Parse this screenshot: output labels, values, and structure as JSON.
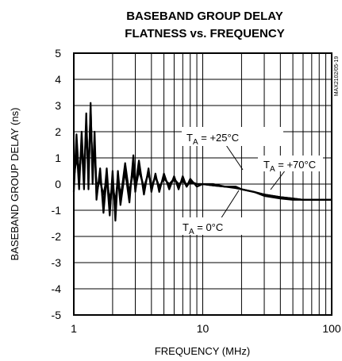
{
  "chart_data": {
    "type": "line",
    "title_line1": "BASEBAND GROUP DELAY",
    "title_line2": "FLATNESS vs. FREQUENCY",
    "xlabel": "FREQUENCY (MHz)",
    "ylabel": "BASEBAND GROUP DELAY (ns)",
    "x_scale": "log",
    "xlim": [
      1,
      100
    ],
    "ylim": [
      -5,
      5
    ],
    "x_ticks": [
      "1",
      "10",
      "100"
    ],
    "y_ticks": [
      "5",
      "4",
      "3",
      "2",
      "1",
      "0",
      "-1",
      "-2",
      "-3",
      "-4",
      "-5"
    ],
    "grid": true,
    "code": "MAX2102/05-19",
    "annotations": [
      {
        "subscript": "A",
        "text": " = +25°C"
      },
      {
        "subscript": "A",
        "text": " = +70°C"
      },
      {
        "subscript": "A",
        "text": " = 0°C"
      }
    ],
    "series": [
      {
        "x": [
          1.0,
          1.05,
          1.1,
          1.15,
          1.2,
          1.25,
          1.3,
          1.35,
          1.4,
          1.45,
          1.5,
          1.6,
          1.7,
          1.8,
          1.9,
          2.0,
          2.1,
          2.2,
          2.3,
          2.5,
          2.7,
          2.9,
          3.0,
          3.2,
          3.5,
          3.8,
          4.0,
          4.3,
          4.6,
          5.0,
          5.5,
          6.0,
          6.5,
          7.0,
          7.5,
          8.0,
          9.0,
          10,
          12,
          15,
          18,
          20,
          25,
          30,
          40,
          50,
          60,
          70,
          80,
          90,
          100
        ],
        "y": [
          -0.3,
          1.9,
          0.2,
          1.6,
          -0.2,
          2.4,
          0.2,
          2.9,
          0.4,
          1.7,
          -0.6,
          0.6,
          -1.1,
          0.3,
          -1.2,
          0.5,
          -1.4,
          0.3,
          -0.8,
          0.5,
          -0.7,
          1.1,
          -0.1,
          0.9,
          -0.4,
          0.6,
          -0.3,
          0.4,
          -0.3,
          0.4,
          -0.2,
          0.3,
          -0.2,
          0.3,
          -0.1,
          0.2,
          -0.1,
          0.0,
          0.0,
          -0.1,
          -0.1,
          -0.2,
          -0.3,
          -0.4,
          -0.5,
          -0.55,
          -0.6,
          -0.6,
          -0.6,
          -0.6,
          -0.6
        ]
      },
      {
        "x": [
          1.0,
          1.05,
          1.1,
          1.15,
          1.2,
          1.25,
          1.3,
          1.35,
          1.4,
          1.45,
          1.5,
          1.6,
          1.7,
          1.8,
          1.9,
          2.0,
          2.1,
          2.2,
          2.3,
          2.5,
          2.7,
          2.9,
          3.0,
          3.2,
          3.5,
          3.8,
          4.0,
          4.3,
          4.6,
          5.0,
          5.5,
          6.0,
          6.5,
          7.0,
          7.5,
          8.0,
          9.0,
          10,
          12,
          15,
          18,
          20,
          25,
          30,
          40,
          50,
          60,
          70,
          80,
          90,
          100
        ],
        "y": [
          0.0,
          1.5,
          -0.2,
          2.0,
          0.1,
          2.7,
          -0.2,
          3.1,
          0.0,
          2.0,
          -0.4,
          0.3,
          -0.8,
          0.6,
          -1.0,
          0.2,
          -1.1,
          0.5,
          -0.6,
          0.8,
          -0.4,
          0.8,
          -0.3,
          0.7,
          -0.2,
          0.5,
          -0.2,
          0.3,
          -0.2,
          0.3,
          -0.1,
          0.2,
          -0.1,
          0.2,
          -0.1,
          0.1,
          0.0,
          0.0,
          -0.05,
          -0.1,
          -0.15,
          -0.2,
          -0.3,
          -0.4,
          -0.5,
          -0.55,
          -0.6,
          -0.6,
          -0.6,
          -0.6,
          -0.6
        ]
      },
      {
        "x": [
          1.0,
          1.05,
          1.1,
          1.15,
          1.2,
          1.25,
          1.3,
          1.35,
          1.4,
          1.45,
          1.5,
          1.6,
          1.7,
          1.8,
          1.9,
          2.0,
          2.1,
          2.2,
          2.3,
          2.5,
          2.7,
          2.9,
          3.0,
          3.2,
          3.5,
          3.8,
          4.0,
          4.3,
          4.6,
          5.0,
          5.5,
          6.0,
          6.5,
          7.0,
          7.5,
          8.0,
          9.0,
          10,
          12,
          15,
          18,
          20,
          25,
          30,
          40,
          50,
          60,
          70,
          80,
          90,
          100
        ],
        "y": [
          0.2,
          1.0,
          0.4,
          1.3,
          0.5,
          2.1,
          0.5,
          2.6,
          0.6,
          1.4,
          0.0,
          0.1,
          -0.4,
          0.2,
          -0.6,
          0.0,
          -0.7,
          0.2,
          -0.4,
          0.4,
          -0.3,
          0.5,
          -0.2,
          0.5,
          -0.1,
          0.4,
          -0.1,
          0.3,
          -0.1,
          0.2,
          0.0,
          0.2,
          0.0,
          0.1,
          0.0,
          0.05,
          0.0,
          0.0,
          -0.05,
          -0.1,
          -0.1,
          -0.2,
          -0.3,
          -0.45,
          -0.55,
          -0.6,
          -0.6,
          -0.6,
          -0.6,
          -0.6,
          -0.6
        ]
      }
    ]
  }
}
